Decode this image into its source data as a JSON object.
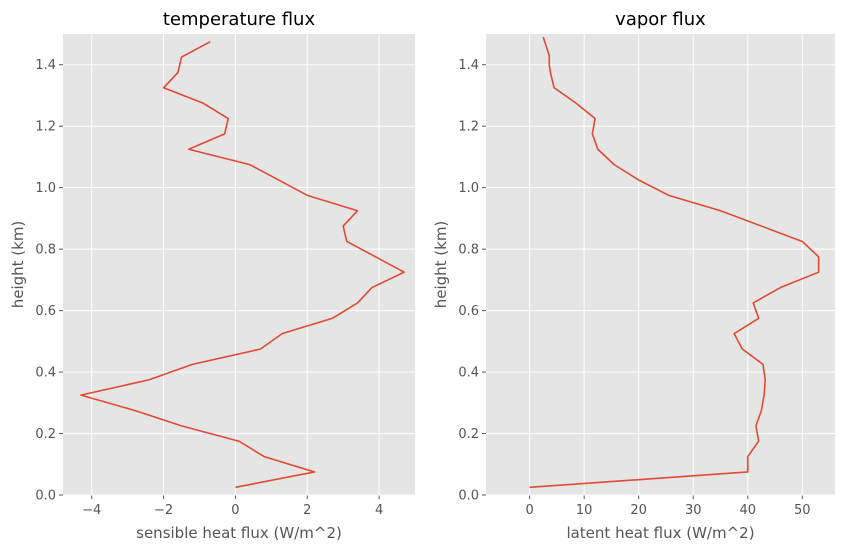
{
  "chart_data": [
    {
      "type": "line",
      "title": "temperature flux",
      "xlabel": "sensible heat flux (W/m^2)",
      "ylabel": "height (km)",
      "xlim": [
        -4.8,
        5.0
      ],
      "ylim": [
        0.0,
        1.5
      ],
      "xticks": [
        -4,
        -2,
        0,
        2,
        4
      ],
      "xtick_labels": [
        "−4",
        "−2",
        "0",
        "2",
        "4"
      ],
      "yticks": [
        0.0,
        0.2,
        0.4,
        0.6,
        0.8,
        1.0,
        1.2,
        1.4
      ],
      "ytick_labels": [
        "0.0",
        "0.2",
        "0.4",
        "0.6",
        "0.8",
        "1.0",
        "1.2",
        "1.4"
      ],
      "grid": true,
      "line_color": "#E24A33",
      "background": "#E5E5E5",
      "series": [
        {
          "x": [
            0.0,
            2.2,
            0.8,
            0.1,
            -1.5,
            -2.8,
            -4.3,
            -2.4,
            -1.2,
            0.7,
            1.3,
            2.7,
            3.4,
            3.8,
            4.7,
            3.9,
            3.1,
            3.0,
            3.4,
            2.0,
            1.2,
            0.4,
            -1.3,
            -0.3,
            -0.2,
            -0.9,
            -2.0,
            -1.6,
            -1.5,
            -0.7
          ],
          "y": [
            0.025,
            0.075,
            0.125,
            0.175,
            0.225,
            0.275,
            0.325,
            0.375,
            0.425,
            0.475,
            0.525,
            0.575,
            0.625,
            0.675,
            0.725,
            0.775,
            0.825,
            0.875,
            0.925,
            0.975,
            1.025,
            1.075,
            1.125,
            1.175,
            1.225,
            1.275,
            1.325,
            1.375,
            1.425,
            1.475
          ]
        }
      ]
    },
    {
      "type": "line",
      "title": "vapor flux",
      "xlabel": "latent heat flux (W/m^2)",
      "ylabel": "height (km)",
      "xlim": [
        -8.0,
        56.0
      ],
      "ylim": [
        0.0,
        1.5
      ],
      "xticks": [
        0,
        10,
        20,
        30,
        40,
        50
      ],
      "xtick_labels": [
        "0",
        "10",
        "20",
        "30",
        "40",
        "50"
      ],
      "yticks": [
        0.0,
        0.2,
        0.4,
        0.6,
        0.8,
        1.0,
        1.2,
        1.4
      ],
      "ytick_labels": [
        "0.0",
        "0.2",
        "0.4",
        "0.6",
        "0.8",
        "1.0",
        "1.2",
        "1.4"
      ],
      "grid": true,
      "line_color": "#E24A33",
      "background": "#E5E5E5",
      "series": [
        {
          "x": [
            0.0,
            40.0,
            40.0,
            42.0,
            41.5,
            42.5,
            43.0,
            43.2,
            42.8,
            39.0,
            37.5,
            42.0,
            41.0,
            46.0,
            53.0,
            53.0,
            50.0,
            35.0,
            25.5,
            20.0,
            15.5,
            12.5,
            11.5,
            12.0,
            8.5,
            4.5,
            3.8,
            3.6,
            3.6,
            2.5
          ],
          "y": [
            0.025,
            0.075,
            0.125,
            0.175,
            0.225,
            0.275,
            0.325,
            0.375,
            0.425,
            0.475,
            0.525,
            0.575,
            0.625,
            0.675,
            0.725,
            0.775,
            0.825,
            0.925,
            0.975,
            1.025,
            1.075,
            1.125,
            1.175,
            1.225,
            1.275,
            1.325,
            1.375,
            1.4,
            1.43,
            1.49
          ]
        }
      ]
    }
  ]
}
